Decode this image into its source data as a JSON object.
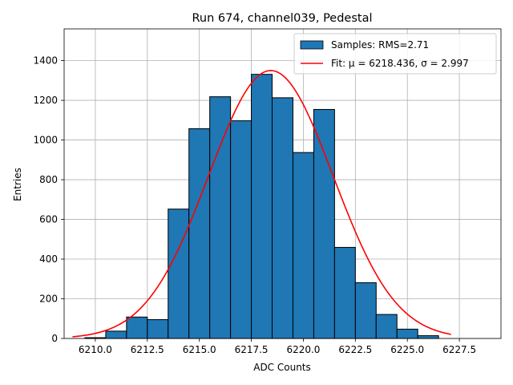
{
  "chart_data": {
    "type": "bar",
    "title": "Run 674, channel039, Pedestal",
    "xlabel": "ADC Counts",
    "ylabel": "Entries",
    "xlim": [
      6208.5,
      6229.5
    ],
    "ylim": [
      0,
      1560
    ],
    "xticks": [
      6210.0,
      6212.5,
      6215.0,
      6217.5,
      6220.0,
      6222.5,
      6225.0,
      6227.5
    ],
    "xtick_labels": [
      "6210.0",
      "6212.5",
      "6215.0",
      "6217.5",
      "6220.0",
      "6222.5",
      "6225.0",
      "6227.5"
    ],
    "yticks": [
      0,
      200,
      400,
      600,
      800,
      1000,
      1200,
      1400
    ],
    "ytick_labels": [
      "0",
      "200",
      "400",
      "600",
      "800",
      "1000",
      "1200",
      "1400"
    ],
    "grid": true,
    "legend_position": "top-right",
    "bin_width": 1,
    "bins": [
      6210,
      6211,
      6212,
      6213,
      6214,
      6215,
      6216,
      6217,
      6218,
      6219,
      6220,
      6221,
      6222,
      6223,
      6224,
      6225,
      6226
    ],
    "values": [
      4,
      37,
      108,
      95,
      652,
      1057,
      1218,
      1097,
      1331,
      1213,
      937,
      1154,
      459,
      281,
      121,
      47,
      14
    ],
    "bar_color": "#1f77b4",
    "fit": {
      "mu": 6218.436,
      "sigma": 2.997,
      "amplitude": 1350,
      "x_range": [
        6208.9,
        6227.1
      ],
      "color": "#ff0000"
    },
    "series": [
      {
        "name": "Samples: RMS=2.71",
        "kind": "histogram",
        "color": "#1f77b4"
      },
      {
        "name": "Fit: μ = 6218.436, σ = 2.997",
        "kind": "line",
        "color": "#ff0000"
      }
    ]
  }
}
